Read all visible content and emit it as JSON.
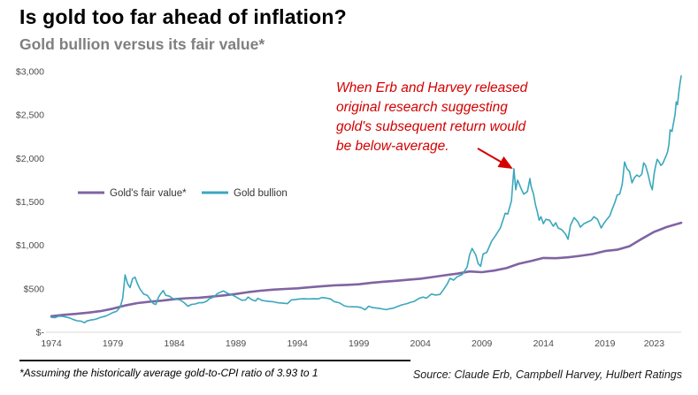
{
  "header": {
    "title": "Is gold too far ahead of inflation?",
    "subtitle": "Gold bullion versus its fair value*"
  },
  "annotation": {
    "lines": [
      "When Erb and Harvey released",
      "original research suggesting",
      "gold's subsequent return would",
      "be below-average."
    ],
    "color": "#d40000"
  },
  "footer": {
    "note": "*Assuming the historically average gold-to-CPI ratio of 3.93 to 1",
    "source": "Source: Claude Erb, Campbell Harvey, Hulbert Ratings"
  },
  "chart_data": {
    "type": "line",
    "title": "Gold bullion versus its fair value*",
    "x_domain": [
      1974,
      2025.2
    ],
    "y_domain": [
      0,
      3000
    ],
    "grid": false,
    "legend_position": "inside-left",
    "x_ticks": {
      "values": [
        1974,
        1979,
        1984,
        1989,
        1994,
        1999,
        2004,
        2009,
        2014,
        2019,
        2023
      ],
      "labels": [
        "1974",
        "1979",
        "1984",
        "1989",
        "1994",
        "1999",
        "2004",
        "2009",
        "2014",
        "2019",
        "2023"
      ]
    },
    "y_ticks": {
      "values": [
        0,
        500,
        1000,
        1500,
        2000,
        2500,
        3000
      ],
      "labels": [
        "$-",
        "$500",
        "$1,000",
        "$1,500",
        "$2,000",
        "$2,500",
        "$3,000"
      ]
    },
    "series": [
      {
        "name": "Gold's fair value*",
        "color": "#8064a2",
        "stroke_width": 2.6,
        "points": [
          [
            1974,
            185
          ],
          [
            1975,
            200
          ],
          [
            1976,
            212
          ],
          [
            1977,
            226
          ],
          [
            1978,
            243
          ],
          [
            1979,
            272
          ],
          [
            1980,
            308
          ],
          [
            1981,
            336
          ],
          [
            1982,
            352
          ],
          [
            1983,
            364
          ],
          [
            1984,
            380
          ],
          [
            1985,
            392
          ],
          [
            1986,
            398
          ],
          [
            1987,
            410
          ],
          [
            1988,
            424
          ],
          [
            1989,
            440
          ],
          [
            1990,
            462
          ],
          [
            1991,
            478
          ],
          [
            1992,
            490
          ],
          [
            1993,
            498
          ],
          [
            1994,
            505
          ],
          [
            1995,
            518
          ],
          [
            1996,
            530
          ],
          [
            1997,
            540
          ],
          [
            1998,
            545
          ],
          [
            1999,
            552
          ],
          [
            2000,
            568
          ],
          [
            2001,
            582
          ],
          [
            2002,
            592
          ],
          [
            2003,
            604
          ],
          [
            2004,
            616
          ],
          [
            2005,
            636
          ],
          [
            2006,
            656
          ],
          [
            2007,
            674
          ],
          [
            2008,
            700
          ],
          [
            2009,
            692
          ],
          [
            2010,
            710
          ],
          [
            2011,
            738
          ],
          [
            2012,
            788
          ],
          [
            2013,
            820
          ],
          [
            2014,
            855
          ],
          [
            2015,
            852
          ],
          [
            2016,
            862
          ],
          [
            2017,
            880
          ],
          [
            2018,
            900
          ],
          [
            2019,
            935
          ],
          [
            2020,
            950
          ],
          [
            2021,
            990
          ],
          [
            2022,
            1075
          ],
          [
            2023,
            1155
          ],
          [
            2024,
            1210
          ],
          [
            2025.2,
            1260
          ]
        ]
      },
      {
        "name": "Gold bullion",
        "color": "#3ba7bc",
        "stroke_width": 1.6,
        "points": [
          [
            1974,
            172
          ],
          [
            1974.3,
            168
          ],
          [
            1974.6,
            185
          ],
          [
            1974.9,
            183
          ],
          [
            1975.2,
            175
          ],
          [
            1975.5,
            165
          ],
          [
            1975.8,
            145
          ],
          [
            1976.1,
            132
          ],
          [
            1976.4,
            128
          ],
          [
            1976.7,
            110
          ],
          [
            1976.9,
            130
          ],
          [
            1977.2,
            140
          ],
          [
            1977.5,
            146
          ],
          [
            1977.8,
            160
          ],
          [
            1978.1,
            175
          ],
          [
            1978.4,
            185
          ],
          [
            1978.7,
            205
          ],
          [
            1979,
            227
          ],
          [
            1979.3,
            240
          ],
          [
            1979.6,
            290
          ],
          [
            1979.8,
            390
          ],
          [
            1980,
            660
          ],
          [
            1980.2,
            560
          ],
          [
            1980.4,
            515
          ],
          [
            1980.6,
            615
          ],
          [
            1980.8,
            635
          ],
          [
            1981,
            560
          ],
          [
            1981.2,
            500
          ],
          [
            1981.5,
            440
          ],
          [
            1981.8,
            425
          ],
          [
            1982,
            385
          ],
          [
            1982.3,
            330
          ],
          [
            1982.5,
            320
          ],
          [
            1982.7,
            400
          ],
          [
            1982.9,
            445
          ],
          [
            1983.1,
            480
          ],
          [
            1983.3,
            425
          ],
          [
            1983.6,
            415
          ],
          [
            1983.9,
            385
          ],
          [
            1984.2,
            380
          ],
          [
            1984.5,
            370
          ],
          [
            1984.8,
            340
          ],
          [
            1985.1,
            300
          ],
          [
            1985.4,
            320
          ],
          [
            1985.7,
            325
          ],
          [
            1986,
            340
          ],
          [
            1986.3,
            340
          ],
          [
            1986.6,
            355
          ],
          [
            1986.9,
            390
          ],
          [
            1987.2,
            405
          ],
          [
            1987.5,
            445
          ],
          [
            1987.8,
            465
          ],
          [
            1988,
            475
          ],
          [
            1988.3,
            450
          ],
          [
            1988.6,
            435
          ],
          [
            1988.9,
            415
          ],
          [
            1989.2,
            390
          ],
          [
            1989.5,
            368
          ],
          [
            1989.8,
            372
          ],
          [
            1990,
            405
          ],
          [
            1990.3,
            375
          ],
          [
            1990.6,
            360
          ],
          [
            1990.8,
            390
          ],
          [
            1991.1,
            368
          ],
          [
            1991.4,
            360
          ],
          [
            1991.7,
            355
          ],
          [
            1992,
            352
          ],
          [
            1992.4,
            340
          ],
          [
            1992.8,
            335
          ],
          [
            1993.2,
            330
          ],
          [
            1993.5,
            372
          ],
          [
            1993.8,
            375
          ],
          [
            1994.1,
            382
          ],
          [
            1994.5,
            385
          ],
          [
            1994.9,
            383
          ],
          [
            1995.3,
            385
          ],
          [
            1995.7,
            384
          ],
          [
            1996,
            400
          ],
          [
            1996.3,
            395
          ],
          [
            1996.7,
            383
          ],
          [
            1997,
            352
          ],
          [
            1997.4,
            340
          ],
          [
            1997.8,
            305
          ],
          [
            1998.1,
            295
          ],
          [
            1998.5,
            293
          ],
          [
            1998.9,
            292
          ],
          [
            1999.2,
            283
          ],
          [
            1999.5,
            258
          ],
          [
            1999.8,
            300
          ],
          [
            2000.1,
            284
          ],
          [
            2000.5,
            278
          ],
          [
            2000.9,
            268
          ],
          [
            2001.2,
            260
          ],
          [
            2001.5,
            270
          ],
          [
            2001.8,
            278
          ],
          [
            2002.1,
            295
          ],
          [
            2002.5,
            315
          ],
          [
            2002.9,
            330
          ],
          [
            2003.2,
            345
          ],
          [
            2003.5,
            355
          ],
          [
            2003.9,
            390
          ],
          [
            2004.2,
            405
          ],
          [
            2004.5,
            393
          ],
          [
            2004.9,
            440
          ],
          [
            2005.2,
            428
          ],
          [
            2005.6,
            435
          ],
          [
            2005.9,
            495
          ],
          [
            2006.2,
            560
          ],
          [
            2006.4,
            620
          ],
          [
            2006.7,
            600
          ],
          [
            2007,
            640
          ],
          [
            2007.4,
            665
          ],
          [
            2007.8,
            750
          ],
          [
            2008,
            890
          ],
          [
            2008.2,
            965
          ],
          [
            2008.5,
            890
          ],
          [
            2008.7,
            790
          ],
          [
            2008.9,
            760
          ],
          [
            2009.1,
            900
          ],
          [
            2009.4,
            920
          ],
          [
            2009.8,
            1050
          ],
          [
            2010.1,
            1110
          ],
          [
            2010.5,
            1200
          ],
          [
            2010.9,
            1370
          ],
          [
            2011.1,
            1360
          ],
          [
            2011.4,
            1510
          ],
          [
            2011.6,
            1880
          ],
          [
            2011.75,
            1640
          ],
          [
            2011.9,
            1750
          ],
          [
            2012,
            1720
          ],
          [
            2012.2,
            1650
          ],
          [
            2012.4,
            1590
          ],
          [
            2012.7,
            1620
          ],
          [
            2012.9,
            1770
          ],
          [
            2013,
            1680
          ],
          [
            2013.2,
            1590
          ],
          [
            2013.35,
            1470
          ],
          [
            2013.5,
            1390
          ],
          [
            2013.65,
            1290
          ],
          [
            2013.8,
            1330
          ],
          [
            2014,
            1250
          ],
          [
            2014.2,
            1300
          ],
          [
            2014.5,
            1290
          ],
          [
            2014.8,
            1220
          ],
          [
            2015,
            1260
          ],
          [
            2015.2,
            1200
          ],
          [
            2015.5,
            1180
          ],
          [
            2015.8,
            1130
          ],
          [
            2016,
            1070
          ],
          [
            2016.2,
            1230
          ],
          [
            2016.5,
            1320
          ],
          [
            2016.8,
            1270
          ],
          [
            2017,
            1210
          ],
          [
            2017.3,
            1250
          ],
          [
            2017.6,
            1270
          ],
          [
            2017.9,
            1290
          ],
          [
            2018.1,
            1330
          ],
          [
            2018.4,
            1300
          ],
          [
            2018.7,
            1200
          ],
          [
            2018.9,
            1250
          ],
          [
            2019.1,
            1290
          ],
          [
            2019.4,
            1340
          ],
          [
            2019.6,
            1420
          ],
          [
            2019.8,
            1490
          ],
          [
            2020,
            1580
          ],
          [
            2020.2,
            1590
          ],
          [
            2020.4,
            1700
          ],
          [
            2020.6,
            1960
          ],
          [
            2020.8,
            1880
          ],
          [
            2021,
            1850
          ],
          [
            2021.2,
            1720
          ],
          [
            2021.4,
            1780
          ],
          [
            2021.6,
            1810
          ],
          [
            2021.8,
            1790
          ],
          [
            2022,
            1820
          ],
          [
            2022.15,
            1950
          ],
          [
            2022.3,
            1920
          ],
          [
            2022.5,
            1820
          ],
          [
            2022.7,
            1700
          ],
          [
            2022.85,
            1640
          ],
          [
            2023,
            1820
          ],
          [
            2023.1,
            1900
          ],
          [
            2023.25,
            1990
          ],
          [
            2023.4,
            1960
          ],
          [
            2023.55,
            1920
          ],
          [
            2023.7,
            1940
          ],
          [
            2023.85,
            1990
          ],
          [
            2024,
            2040
          ],
          [
            2024.1,
            2080
          ],
          [
            2024.2,
            2160
          ],
          [
            2024.3,
            2330
          ],
          [
            2024.45,
            2310
          ],
          [
            2024.6,
            2430
          ],
          [
            2024.7,
            2500
          ],
          [
            2024.8,
            2650
          ],
          [
            2024.9,
            2620
          ],
          [
            2025,
            2750
          ],
          [
            2025.1,
            2860
          ],
          [
            2025.2,
            2950
          ]
        ]
      }
    ]
  }
}
